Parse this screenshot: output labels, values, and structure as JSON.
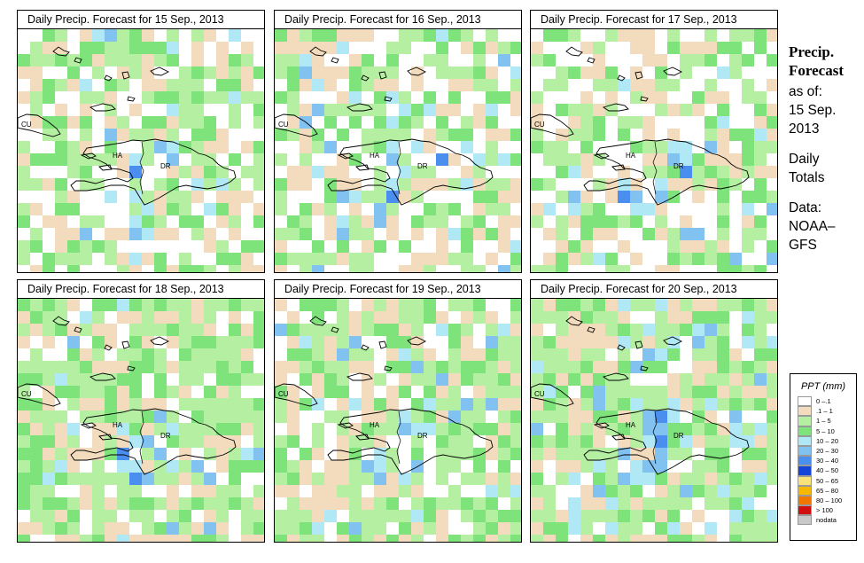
{
  "panels": [
    {
      "title": "Daily Precip. Forecast for  15 Sep., 2013",
      "seed": 11,
      "wet": 0.42,
      "blue": 0.05
    },
    {
      "title": "Daily Precip. Forecast for  16 Sep., 2013",
      "seed": 23,
      "wet": 0.38,
      "blue": 0.07
    },
    {
      "title": "Daily Precip. Forecast for  17 Sep., 2013",
      "seed": 37,
      "wet": 0.36,
      "blue": 0.06
    },
    {
      "title": "Daily Precip. Forecast for  18 Sep., 2013",
      "seed": 41,
      "wet": 0.55,
      "blue": 0.05
    },
    {
      "title": "Daily Precip. Forecast for  19 Sep., 2013",
      "seed": 59,
      "wet": 0.5,
      "blue": 0.08
    },
    {
      "title": "Daily Precip. Forecast for  20 Sep., 2013",
      "seed": 67,
      "wet": 0.52,
      "blue": 0.12
    }
  ],
  "map_labels": {
    "cu": "CU",
    "ha": "HA",
    "dr": "DR"
  },
  "sidebar": {
    "title_line1": "Precip.",
    "title_line2": "Forecast",
    "asof": "as of:",
    "date_line1": "15 Sep.",
    "date_line2": "2013",
    "totals_line1": "Daily",
    "totals_line2": "Totals",
    "data_line1": "Data:",
    "data_line2": "NOAA–",
    "data_line3": "GFS"
  },
  "legend": {
    "title": "PPT (mm)",
    "items": [
      {
        "label": "0 –.1",
        "color": "#ffffff"
      },
      {
        "label": ".1 – 1",
        "color": "#f3dcbd"
      },
      {
        "label": "1 – 5",
        "color": "#b5f0a2"
      },
      {
        "label": "5 – 10",
        "color": "#7ee37a"
      },
      {
        "label": "10 – 20",
        "color": "#b0e8f6"
      },
      {
        "label": "20 – 30",
        "color": "#82c2f0"
      },
      {
        "label": "30 – 40",
        "color": "#4a8ef0"
      },
      {
        "label": "40 – 50",
        "color": "#1545d6"
      },
      {
        "label": "50 – 65",
        "color": "#f8e37a"
      },
      {
        "label": "65 – 80",
        "color": "#f5b700"
      },
      {
        "label": "80 – 100",
        "color": "#f07800"
      },
      {
        "label": "> 100",
        "color": "#d01010"
      },
      {
        "label": "nodata",
        "color": "#c8c8c8"
      }
    ]
  }
}
